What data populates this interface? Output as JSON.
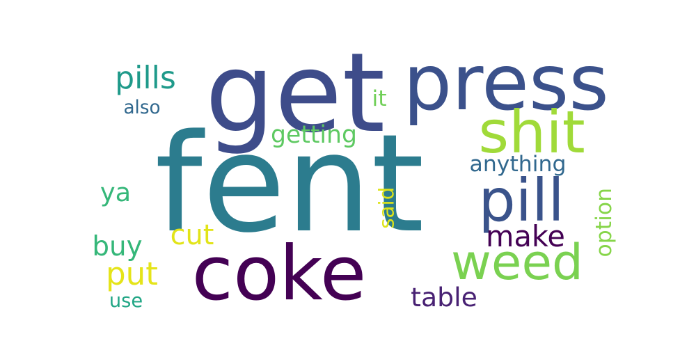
{
  "words": [
    {
      "id": "fent",
      "text": "fent",
      "color": "#2c7c8e",
      "orientation": "horizontal"
    },
    {
      "id": "get",
      "text": "get",
      "color": "#3e4c8a",
      "orientation": "horizontal"
    },
    {
      "id": "press",
      "text": "press",
      "color": "#3b518b",
      "orientation": "horizontal"
    },
    {
      "id": "coke",
      "text": "coke",
      "color": "#440154",
      "orientation": "horizontal"
    },
    {
      "id": "pill",
      "text": "pill",
      "color": "#3a538b",
      "orientation": "horizontal"
    },
    {
      "id": "weed",
      "text": "weed",
      "color": "#7ad151",
      "orientation": "horizontal"
    },
    {
      "id": "shit",
      "text": "shit",
      "color": "#a0da39",
      "orientation": "horizontal"
    },
    {
      "id": "pills",
      "text": "pills",
      "color": "#1f9a8a",
      "orientation": "horizontal"
    },
    {
      "id": "also",
      "text": "also",
      "color": "#31688e",
      "orientation": "horizontal"
    },
    {
      "id": "it",
      "text": "it",
      "color": "#70cf57",
      "orientation": "horizontal"
    },
    {
      "id": "getting",
      "text": "getting",
      "color": "#5ec962",
      "orientation": "horizontal"
    },
    {
      "id": "anything",
      "text": "anything",
      "color": "#31688e",
      "orientation": "horizontal"
    },
    {
      "id": "ya",
      "text": "ya",
      "color": "#35b779",
      "orientation": "horizontal"
    },
    {
      "id": "cut",
      "text": "cut",
      "color": "#e2e418",
      "orientation": "horizontal"
    },
    {
      "id": "said",
      "text": "said",
      "color": "#dde318",
      "orientation": "vertical"
    },
    {
      "id": "option",
      "text": "option",
      "color": "#86d549",
      "orientation": "vertical"
    },
    {
      "id": "make",
      "text": "make",
      "color": "#440154",
      "orientation": "horizontal"
    },
    {
      "id": "buy",
      "text": "buy",
      "color": "#35b779",
      "orientation": "horizontal"
    },
    {
      "id": "put",
      "text": "put",
      "color": "#e5e419",
      "orientation": "horizontal"
    },
    {
      "id": "use",
      "text": "use",
      "color": "#21a685",
      "orientation": "horizontal"
    },
    {
      "id": "table",
      "text": "table",
      "color": "#482173",
      "orientation": "horizontal"
    }
  ]
}
